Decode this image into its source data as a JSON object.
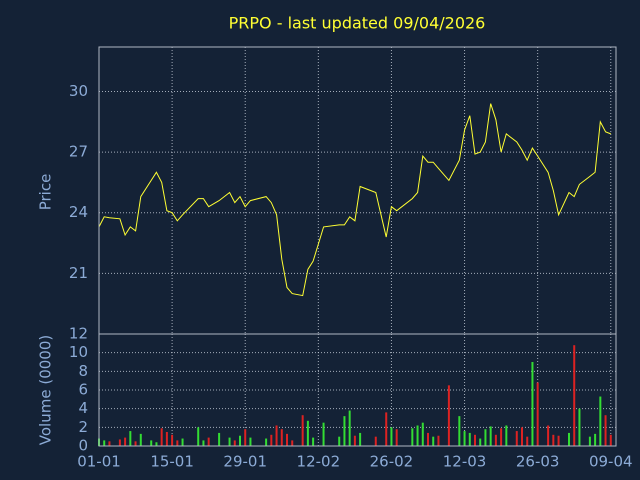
{
  "chart_data": {
    "type": "stock",
    "title": "PRPO - last updated 09/04/2026",
    "ylabel": "Price",
    "y2label": "Volume (0000)",
    "x": [
      "01-01",
      "02-01",
      "03-01",
      "05-01",
      "06-01",
      "07-01",
      "08-01",
      "09-01",
      "11-01",
      "12-01",
      "13-01",
      "14-01",
      "15-01",
      "16-01",
      "17-01",
      "20-01",
      "21-01",
      "22-01",
      "24-01",
      "26-01",
      "27-01",
      "28-01",
      "29-01",
      "30-01",
      "02-02",
      "03-02",
      "04-02",
      "05-02",
      "06-02",
      "07-02",
      "09-02",
      "10-02",
      "11-02",
      "13-02",
      "16-02",
      "17-02",
      "18-02",
      "19-02",
      "20-02",
      "23-02",
      "25-02",
      "26-02",
      "27-02",
      "02-03",
      "03-03",
      "04-03",
      "05-03",
      "06-03",
      "07-03",
      "09-03",
      "11-03",
      "12-03",
      "13-03",
      "14-03",
      "15-03",
      "16-03",
      "17-03",
      "18-03",
      "19-03",
      "20-03",
      "22-03",
      "23-03",
      "24-03",
      "25-03",
      "26-03",
      "28-03",
      "29-03",
      "30-03",
      "01-04",
      "02-04",
      "03-04",
      "05-04",
      "06-04",
      "07-04",
      "08-04",
      "09-04"
    ],
    "xlim": [
      "01-01",
      "10-04"
    ],
    "xticks": [
      "01-01",
      "15-01",
      "29-01",
      "12-02",
      "26-02",
      "12-03",
      "26-03",
      "09-04"
    ],
    "series": [
      {
        "name": "Price",
        "color": "#ffff33",
        "values": [
          23.3,
          23.8,
          23.75,
          23.7,
          22.9,
          23.3,
          23.1,
          24.8,
          25.6,
          26.0,
          25.5,
          24.1,
          24.0,
          23.6,
          23.9,
          24.7,
          24.7,
          24.3,
          24.6,
          25.0,
          24.5,
          24.8,
          24.3,
          24.6,
          24.8,
          24.5,
          23.9,
          21.7,
          20.3,
          20.0,
          19.9,
          21.2,
          21.6,
          23.3,
          23.4,
          23.4,
          23.8,
          23.6,
          25.3,
          25.0,
          22.8,
          24.3,
          24.1,
          24.7,
          25.0,
          26.8,
          26.5,
          26.5,
          26.2,
          25.6,
          26.6,
          28.1,
          28.8,
          26.9,
          27.0,
          27.5,
          29.4,
          28.6,
          27.0,
          27.9,
          27.5,
          27.1,
          26.6,
          27.2,
          26.8,
          26.0,
          25.1,
          23.9,
          25.0,
          24.8,
          25.4,
          25.8,
          26.0,
          28.5,
          28.0,
          27.9
        ]
      },
      {
        "name": "Volume",
        "axis": "y2",
        "up_color": "#33dd33",
        "down_color": "#dd2222",
        "values": [
          0.8,
          0.6,
          0.5,
          0.7,
          0.9,
          1.6,
          0.5,
          1.3,
          0.6,
          0.4,
          1.9,
          1.5,
          1.2,
          0.6,
          0.8,
          2.0,
          0.6,
          0.9,
          1.4,
          0.9,
          0.6,
          1.1,
          1.8,
          0.9,
          0.8,
          1.2,
          2.2,
          1.8,
          1.3,
          0.6,
          3.3,
          2.7,
          0.9,
          2.5,
          1.0,
          3.2,
          3.8,
          1.1,
          1.4,
          1.0,
          3.6,
          2.0,
          1.8,
          1.9,
          2.2,
          2.5,
          1.4,
          1.0,
          1.1,
          6.5,
          3.2,
          1.6,
          1.4,
          1.2,
          0.8,
          1.8,
          2.1,
          1.2,
          1.9,
          2.2,
          1.6,
          2.0,
          1.0,
          9.0,
          6.8,
          2.2,
          1.2,
          1.1,
          1.4,
          10.8,
          4.0,
          1.0,
          1.3,
          5.3,
          3.3,
          1.2
        ]
      }
    ],
    "ylim": [
      18,
      32.2
    ],
    "yticks": [
      21,
      24,
      27,
      30
    ],
    "y2lim": [
      0,
      12
    ],
    "y2ticks": [
      0,
      2,
      4,
      6,
      8,
      10,
      12
    ],
    "grid": true
  }
}
